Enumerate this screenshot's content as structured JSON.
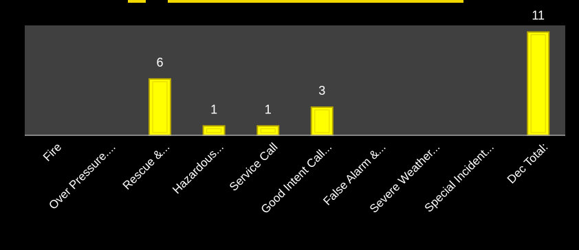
{
  "chart_data": {
    "type": "bar",
    "title": "",
    "xlabel": "",
    "ylabel": "",
    "categories": [
      "Fire",
      "Over Pressure....",
      "Rescue &...",
      "Hazardous...",
      "Service Call",
      "Good Intent Call...",
      "False Alarm &...",
      "Severe Weather...",
      "Special Incident...",
      "Dec Total:"
    ],
    "values": [
      0,
      0,
      6,
      1,
      1,
      3,
      0,
      0,
      0,
      11
    ],
    "data_labels": [
      "",
      "",
      "6",
      "1",
      "1",
      "3",
      "",
      "",
      "",
      "11"
    ],
    "ylim": [
      0,
      11
    ],
    "grid": false,
    "legend": "none",
    "colors": {
      "background": "#000000",
      "plot_area": "#404040",
      "bar_fill": "#ffff00",
      "bar_edge": "#b8a800",
      "axis": "#a6a6a6",
      "text": "#ffffff"
    }
  }
}
